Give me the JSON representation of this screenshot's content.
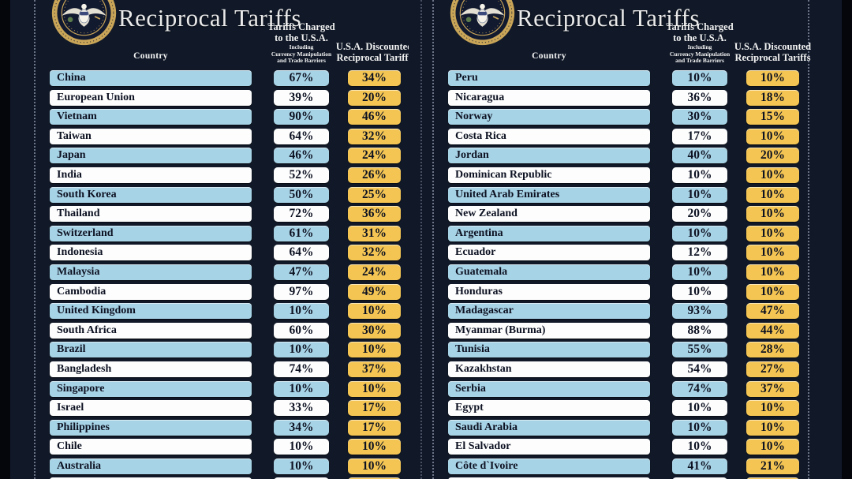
{
  "header": {
    "title": "Reciprocal Tariffs",
    "country_col": "Country",
    "charged_col": {
      "line1": "Tariffs Charged",
      "line2": "to the U.S.A.",
      "sub1": "Including",
      "sub2": "Currency Manipulation",
      "sub3": "and Trade Barriers"
    },
    "discount_col": {
      "line1": "U.S.A. Discounted",
      "line2": "Reciprocal Tariffs"
    }
  },
  "colors": {
    "page_background": "#111928",
    "outer_background": "#04060b",
    "row_blue": "#A7D3E6",
    "row_white": "#FDFDFD",
    "discount_yellow": "#F4C553",
    "text_dark": "#0D1222",
    "header_text": "#F2F2F2",
    "seal_gold": "#C9A558",
    "dotted_border": "#8B94A8"
  },
  "chart_data": {
    "type": "table",
    "title": "Reciprocal Tariffs",
    "columns": [
      "Country",
      "Tariffs Charged to the U.S.A. Including Currency Manipulation and Trade Barriers",
      "U.S.A. Discounted Reciprocal Tariffs"
    ],
    "panels": [
      {
        "rows": [
          [
            "China",
            "67%",
            "34%"
          ],
          [
            "European Union",
            "39%",
            "20%"
          ],
          [
            "Vietnam",
            "90%",
            "46%"
          ],
          [
            "Taiwan",
            "64%",
            "32%"
          ],
          [
            "Japan",
            "46%",
            "24%"
          ],
          [
            "India",
            "52%",
            "26%"
          ],
          [
            "South Korea",
            "50%",
            "25%"
          ],
          [
            "Thailand",
            "72%",
            "36%"
          ],
          [
            "Switzerland",
            "61%",
            "31%"
          ],
          [
            "Indonesia",
            "64%",
            "32%"
          ],
          [
            "Malaysia",
            "47%",
            "24%"
          ],
          [
            "Cambodia",
            "97%",
            "49%"
          ],
          [
            "United Kingdom",
            "10%",
            "10%"
          ],
          [
            "South Africa",
            "60%",
            "30%"
          ],
          [
            "Brazil",
            "10%",
            "10%"
          ],
          [
            "Bangladesh",
            "74%",
            "37%"
          ],
          [
            "Singapore",
            "10%",
            "10%"
          ],
          [
            "Israel",
            "33%",
            "17%"
          ],
          [
            "Philippines",
            "34%",
            "17%"
          ],
          [
            "Chile",
            "10%",
            "10%"
          ],
          [
            "Australia",
            "10%",
            "10%"
          ]
        ]
      },
      {
        "rows": [
          [
            "Peru",
            "10%",
            "10%"
          ],
          [
            "Nicaragua",
            "36%",
            "18%"
          ],
          [
            "Norway",
            "30%",
            "15%"
          ],
          [
            "Costa Rica",
            "17%",
            "10%"
          ],
          [
            "Jordan",
            "40%",
            "20%"
          ],
          [
            "Dominican Republic",
            "10%",
            "10%"
          ],
          [
            "United Arab Emirates",
            "10%",
            "10%"
          ],
          [
            "New Zealand",
            "20%",
            "10%"
          ],
          [
            "Argentina",
            "10%",
            "10%"
          ],
          [
            "Ecuador",
            "12%",
            "10%"
          ],
          [
            "Guatemala",
            "10%",
            "10%"
          ],
          [
            "Honduras",
            "10%",
            "10%"
          ],
          [
            "Madagascar",
            "93%",
            "47%"
          ],
          [
            "Myanmar (Burma)",
            "88%",
            "44%"
          ],
          [
            "Tunisia",
            "55%",
            "28%"
          ],
          [
            "Kazakhstan",
            "54%",
            "27%"
          ],
          [
            "Serbia",
            "74%",
            "37%"
          ],
          [
            "Egypt",
            "10%",
            "10%"
          ],
          [
            "Saudi Arabia",
            "10%",
            "10%"
          ],
          [
            "El Salvador",
            "10%",
            "10%"
          ],
          [
            "Côte d`Ivoire",
            "41%",
            "21%"
          ]
        ]
      }
    ]
  }
}
